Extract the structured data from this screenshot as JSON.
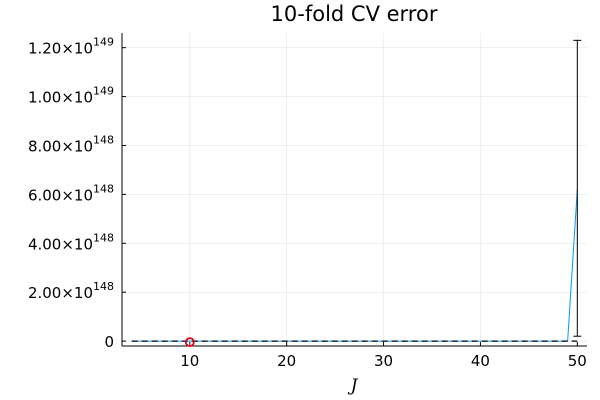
{
  "chart_data": {
    "type": "line",
    "title": "10-fold CV error",
    "xlabel": "J",
    "ylabel": "",
    "xlim": [
      3,
      51
    ],
    "ylim": [
      -2e+147,
      1.26e+149
    ],
    "x_ticks": [
      {
        "value": 10,
        "label": "10"
      },
      {
        "value": 20,
        "label": "20"
      },
      {
        "value": 30,
        "label": "30"
      },
      {
        "value": 40,
        "label": "40"
      },
      {
        "value": 50,
        "label": "50"
      }
    ],
    "y_ticks": [
      {
        "value": 0,
        "mantissa": "0",
        "exponent": ""
      },
      {
        "value": 2e+148,
        "mantissa": "2.00×10",
        "exponent": "148"
      },
      {
        "value": 4e+148,
        "mantissa": "4.00×10",
        "exponent": "148"
      },
      {
        "value": 6e+148,
        "mantissa": "6.00×10",
        "exponent": "148"
      },
      {
        "value": 8e+148,
        "mantissa": "8.00×10",
        "exponent": "148"
      },
      {
        "value": 1e+149,
        "mantissa": "1.00×10",
        "exponent": "149"
      },
      {
        "value": 1.2e+149,
        "mantissa": "1.20×10",
        "exponent": "149"
      }
    ],
    "grid": true,
    "legend": "none",
    "series": [
      {
        "color": "#009AFA",
        "x": [
          4,
          5,
          6,
          7,
          8,
          9,
          10,
          11,
          12,
          13,
          14,
          15,
          16,
          17,
          18,
          19,
          20,
          21,
          22,
          23,
          24,
          25,
          26,
          27,
          28,
          29,
          30,
          31,
          32,
          33,
          34,
          35,
          36,
          37,
          38,
          39,
          40,
          41,
          42,
          43,
          44,
          45,
          46,
          47,
          48,
          49,
          50
        ],
        "y": [
          0,
          0,
          0,
          0,
          0,
          0,
          0,
          0,
          0,
          0,
          0,
          0,
          0,
          0,
          0,
          0,
          0,
          0,
          0,
          0,
          0,
          0,
          0,
          0,
          0,
          0,
          0,
          0,
          0,
          0,
          0,
          0,
          0,
          0,
          0,
          0,
          0,
          0,
          0,
          0,
          0,
          0,
          0,
          0,
          0,
          0,
          6.2e+148
        ]
      }
    ],
    "error_bar": {
      "x": 50,
      "low": 2e+147,
      "high": 1.23e+149,
      "color": "#000000"
    },
    "dashed_line": {
      "y": 0,
      "x_from": 4,
      "x_to": 50,
      "color": "#000000"
    },
    "marker": {
      "x": 10,
      "y": 0,
      "shape": "circle",
      "color": "#E0001B"
    }
  }
}
